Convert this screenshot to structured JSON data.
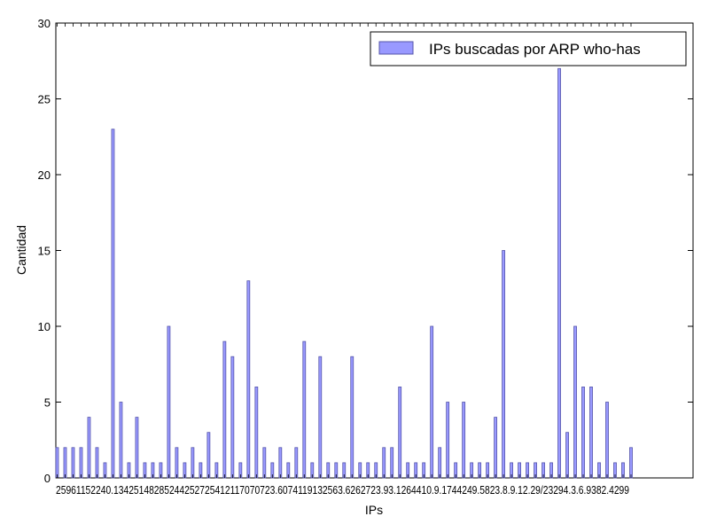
{
  "chart_data": {
    "type": "bar",
    "title": "",
    "xlabel": "IPs",
    "ylabel": "Cantidad",
    "ylim": [
      0,
      30
    ],
    "yticks": [
      0,
      5,
      10,
      15,
      20,
      25,
      30
    ],
    "grid": false,
    "legend_position": "top-right",
    "colors": {
      "bar_fill": "#9999ff",
      "bar_edge": "#5555aa",
      "axis": "#000000"
    },
    "xtick_labels_rendered": "25961152240.13425148285244252725412117070723.6074119132563.6262723.93.1264410.9.1744249.5823.8.9.12.29/23294.3.6.9382.4299",
    "series": [
      {
        "name": "IPs buscadas por ARP who-has",
        "values": [
          2,
          2,
          2,
          2,
          4,
          2,
          1,
          23,
          5,
          1,
          4,
          1,
          1,
          1,
          10,
          2,
          1,
          2,
          1,
          3,
          1,
          9,
          8,
          1,
          13,
          6,
          2,
          1,
          2,
          1,
          2,
          9,
          1,
          8,
          1,
          1,
          1,
          8,
          1,
          1,
          1,
          2,
          2,
          6,
          1,
          1,
          1,
          10,
          2,
          5,
          1,
          5,
          1,
          1,
          1,
          4,
          15,
          1,
          1,
          1,
          1,
          1,
          1,
          27,
          3,
          10,
          6,
          6,
          1,
          5,
          1,
          1,
          2
        ]
      }
    ]
  }
}
